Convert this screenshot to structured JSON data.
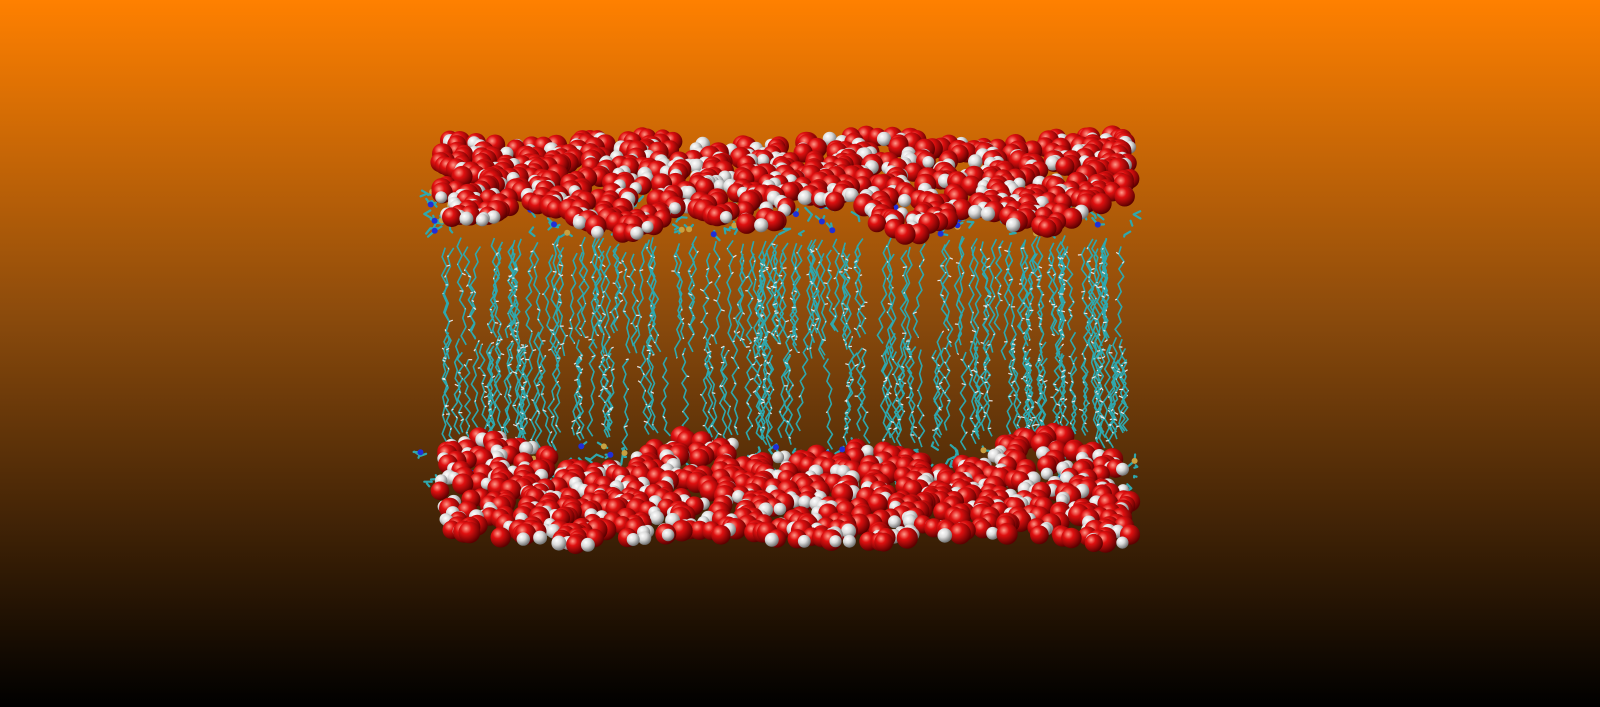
{
  "viewer": {
    "background_gradient": {
      "top_color": "#ff8000",
      "bottom_color": "#000000"
    }
  },
  "scene": {
    "subject": "lipid-bilayer-with-water",
    "atom_colors": {
      "oxygen": "#d40b0b",
      "hydrogen": "#e8e8e8",
      "carbon": "#2ea8ae",
      "nitrogen": "#1f2fd8",
      "phosphorus": "#c8a040"
    },
    "layers": [
      {
        "name": "water-top",
        "representation": "vdw-spheres"
      },
      {
        "name": "headgroups-top",
        "representation": "licorice"
      },
      {
        "name": "lipid-tails",
        "representation": "lines"
      },
      {
        "name": "headgroups-bottom",
        "representation": "licorice"
      },
      {
        "name": "water-bottom",
        "representation": "vdw-spheres"
      }
    ]
  }
}
